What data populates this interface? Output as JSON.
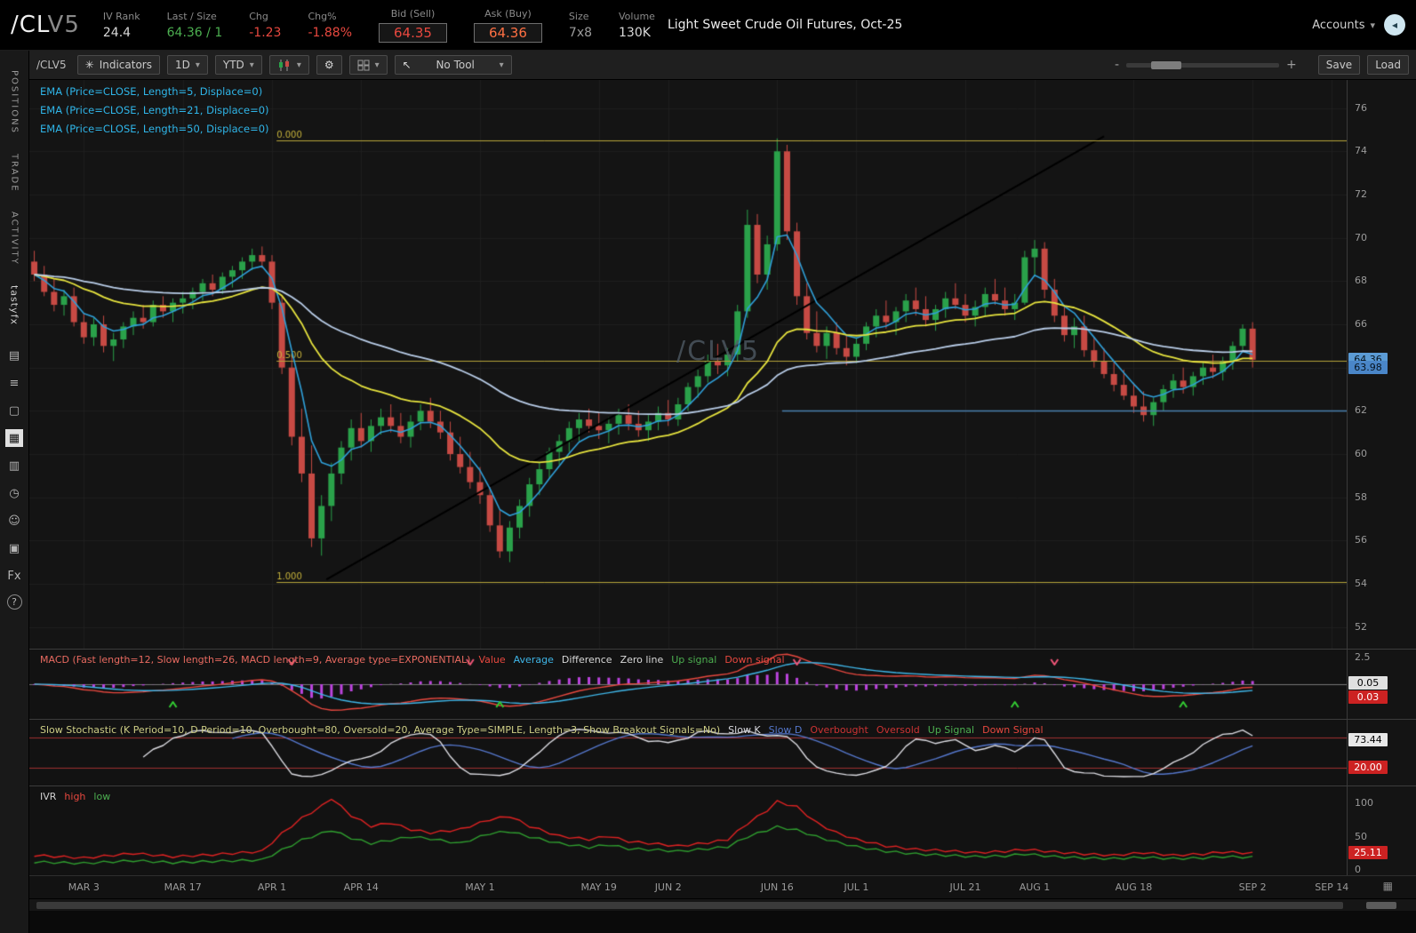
{
  "header": {
    "symbol_main": "/CL",
    "symbol_suffix": "V5",
    "stats": [
      {
        "label": "IV Rank",
        "value": "24.4",
        "color": "#d8d8d8"
      },
      {
        "label": "Last / Size",
        "value": "64.36 / 1",
        "color": "#4caf50"
      },
      {
        "label": "Chg",
        "value": "-1.23",
        "color": "#e8483f"
      },
      {
        "label": "Chg%",
        "value": "-1.88%",
        "color": "#e8483f"
      },
      {
        "label": "Bid (Sell)",
        "value": "64.35",
        "color": "#e8483f",
        "boxed": true
      },
      {
        "label": "Ask (Buy)",
        "value": "64.36",
        "color": "#ff7043",
        "boxed": true
      },
      {
        "label": "Size",
        "value": "7x8",
        "color": "#9a9a9a"
      },
      {
        "label": "Volume",
        "value": "130K",
        "color": "#d8d8d8"
      }
    ],
    "contract_name": "Light Sweet Crude Oil Futures, Oct-25",
    "accounts_label": "Accounts"
  },
  "sidebar": {
    "tabs": [
      {
        "name": "positions",
        "label": "POSITIONS"
      },
      {
        "name": "trade",
        "label": "TRADE"
      },
      {
        "name": "activity",
        "label": "ACTIVITY"
      },
      {
        "name": "tastyfx",
        "label": "tastyfx",
        "brand": true
      }
    ],
    "icons": [
      {
        "name": "news-icon",
        "glyph": "▤"
      },
      {
        "name": "watchlist-icon",
        "glyph": "≡"
      },
      {
        "name": "trade-page-icon",
        "glyph": "▢"
      },
      {
        "name": "charts-icon",
        "glyph": "▦",
        "active": true
      },
      {
        "name": "dashboard-grid-icon",
        "glyph": "▥"
      },
      {
        "name": "history-clock-icon",
        "glyph": "◷"
      },
      {
        "name": "community-icon",
        "glyph": "☺"
      },
      {
        "name": "calendar-icon",
        "glyph": "▣"
      },
      {
        "name": "forex-icon",
        "glyph": "Fx"
      },
      {
        "name": "help-icon",
        "glyph": "?",
        "circled": true
      }
    ]
  },
  "toolbar": {
    "symbol_label": "/CLV5",
    "indicators_label": "Indicators",
    "timeframe_value": "1D",
    "range_value": "YTD",
    "tool_value": "No Tool",
    "zoom_minus": "-",
    "zoom_plus": "+",
    "save_label": "Save",
    "load_label": "Load"
  },
  "chart_data": {
    "type": "candlestick",
    "symbol": "/CLV5",
    "watermark": "/CLV5",
    "price_axis": [
      76,
      74,
      72,
      70,
      68,
      66,
      64,
      62,
      60,
      58,
      56,
      54,
      52
    ],
    "price_range": {
      "max": 77.3,
      "min": 51.0
    },
    "total_slots": 133,
    "time_axis": [
      {
        "label": "MAR 3",
        "index": 5
      },
      {
        "label": "MAR 17",
        "index": 15
      },
      {
        "label": "APR 1",
        "index": 24
      },
      {
        "label": "APR 14",
        "index": 33
      },
      {
        "label": "MAY 1",
        "index": 45
      },
      {
        "label": "MAY 19",
        "index": 57
      },
      {
        "label": "JUN 2",
        "index": 64
      },
      {
        "label": "JUN 16",
        "index": 75
      },
      {
        "label": "JUL 1",
        "index": 83
      },
      {
        "label": "JUL 21",
        "index": 94
      },
      {
        "label": "AUG 1",
        "index": 101
      },
      {
        "label": "AUG 18",
        "index": 111
      },
      {
        "label": "SEP 2",
        "index": 123
      },
      {
        "label": "SEP 14",
        "index": 131
      }
    ],
    "ema_legend": [
      "EMA (Price=CLOSE, Length=5, Displace=0)",
      "EMA (Price=CLOSE, Length=21, Displace=0)",
      "EMA (Price=CLOSE, Length=50, Displace=0)"
    ],
    "ema_settings": [
      {
        "length": 5,
        "color": "#2f9fd8"
      },
      {
        "length": 21,
        "color": "#e6e33e"
      },
      {
        "length": 50,
        "color": "#b9cde8"
      }
    ],
    "fib_levels": [
      {
        "label": "0.000",
        "price": 74.5
      },
      {
        "label": "0.500",
        "price": 64.3
      },
      {
        "label": "1.000",
        "price": 54.1
      }
    ],
    "fib_label_index": 25,
    "fib_color": "#b7a43a",
    "support_line": {
      "price": 62.0,
      "start_index": 75.5,
      "color": "#4a7fae"
    },
    "trendline": {
      "start_index": 29.5,
      "start_price": 54.2,
      "end_index": 108,
      "end_price": 74.7,
      "color": "#000000"
    },
    "price_bubbles": [
      {
        "value": "64.36",
        "price": 64.36,
        "bg": "#5b9bd5",
        "fg": "#06121c"
      },
      {
        "value": "63.98",
        "price": 63.98,
        "bg": "#4a86c8",
        "fg": "#06121c"
      }
    ],
    "candle_up_color": "#2aa14a",
    "candle_down_color": "#c74a44",
    "grid_color": "#1e1e1e",
    "bg_color": "#141414",
    "candles": [
      [
        68.9,
        69.4,
        68.0,
        68.3
      ],
      [
        68.3,
        68.7,
        67.3,
        67.5
      ],
      [
        67.5,
        68.1,
        66.6,
        66.9
      ],
      [
        66.9,
        67.6,
        66.4,
        67.3
      ],
      [
        67.3,
        67.7,
        65.9,
        66.1
      ],
      [
        66.1,
        66.5,
        65.1,
        65.4
      ],
      [
        65.4,
        66.3,
        65.0,
        66.0
      ],
      [
        66.0,
        66.4,
        64.7,
        65.0
      ],
      [
        65.0,
        65.6,
        64.3,
        65.3
      ],
      [
        65.3,
        66.1,
        64.9,
        65.9
      ],
      [
        65.9,
        66.6,
        65.5,
        66.3
      ],
      [
        66.3,
        66.9,
        65.8,
        66.1
      ],
      [
        66.1,
        67.1,
        65.9,
        66.9
      ],
      [
        66.9,
        67.3,
        66.3,
        66.6
      ],
      [
        66.6,
        67.2,
        66.1,
        67.0
      ],
      [
        67.0,
        67.5,
        66.5,
        67.2
      ],
      [
        67.2,
        67.7,
        66.7,
        67.5
      ],
      [
        67.5,
        68.1,
        67.1,
        67.9
      ],
      [
        67.9,
        68.3,
        67.3,
        67.6
      ],
      [
        67.6,
        68.4,
        67.4,
        68.2
      ],
      [
        68.2,
        68.7,
        67.7,
        68.5
      ],
      [
        68.5,
        69.1,
        68.1,
        68.9
      ],
      [
        68.9,
        69.5,
        68.5,
        69.2
      ],
      [
        69.2,
        69.6,
        68.6,
        68.9
      ],
      [
        68.9,
        69.2,
        66.7,
        67.0
      ],
      [
        67.0,
        67.3,
        63.7,
        64.0
      ],
      [
        64.0,
        64.6,
        60.4,
        60.8
      ],
      [
        60.8,
        62.1,
        58.7,
        59.1
      ],
      [
        59.1,
        60.4,
        55.7,
        56.1
      ],
      [
        56.1,
        58.1,
        55.3,
        57.6
      ],
      [
        57.6,
        59.6,
        56.9,
        59.1
      ],
      [
        59.1,
        60.6,
        58.6,
        60.3
      ],
      [
        60.3,
        61.6,
        59.7,
        61.2
      ],
      [
        61.2,
        61.9,
        60.3,
        60.6
      ],
      [
        60.6,
        61.6,
        60.1,
        61.3
      ],
      [
        61.3,
        62.1,
        60.9,
        61.7
      ],
      [
        61.7,
        62.3,
        61.0,
        61.3
      ],
      [
        61.3,
        61.9,
        60.5,
        60.8
      ],
      [
        60.8,
        61.8,
        60.3,
        61.5
      ],
      [
        61.5,
        62.3,
        61.1,
        62.0
      ],
      [
        62.0,
        62.6,
        61.2,
        61.5
      ],
      [
        61.5,
        62.0,
        60.7,
        61.0
      ],
      [
        61.0,
        61.5,
        59.7,
        60.0
      ],
      [
        60.0,
        60.8,
        59.1,
        59.4
      ],
      [
        59.4,
        60.1,
        58.4,
        58.7
      ],
      [
        58.7,
        59.4,
        57.7,
        58.1
      ],
      [
        58.1,
        58.5,
        56.4,
        56.7
      ],
      [
        56.7,
        57.4,
        55.2,
        55.5
      ],
      [
        55.5,
        56.9,
        55.0,
        56.6
      ],
      [
        56.6,
        57.9,
        56.1,
        57.6
      ],
      [
        57.6,
        58.9,
        57.1,
        58.6
      ],
      [
        58.6,
        59.6,
        58.1,
        59.3
      ],
      [
        59.3,
        60.3,
        58.9,
        60.1
      ],
      [
        60.1,
        60.9,
        59.5,
        60.6
      ],
      [
        60.6,
        61.5,
        60.1,
        61.2
      ],
      [
        61.2,
        61.9,
        60.6,
        61.6
      ],
      [
        61.6,
        62.1,
        61.0,
        61.3
      ],
      [
        61.3,
        61.9,
        60.7,
        61.1
      ],
      [
        61.1,
        61.7,
        60.5,
        61.4
      ],
      [
        61.4,
        62.1,
        60.9,
        61.8
      ],
      [
        61.8,
        62.3,
        61.1,
        61.4
      ],
      [
        61.4,
        62.0,
        60.8,
        61.1
      ],
      [
        61.1,
        61.8,
        60.6,
        61.5
      ],
      [
        61.5,
        62.2,
        61.1,
        61.9
      ],
      [
        61.9,
        62.5,
        61.3,
        61.6
      ],
      [
        61.6,
        62.6,
        61.3,
        62.3
      ],
      [
        62.3,
        63.3,
        62.0,
        63.1
      ],
      [
        63.1,
        63.9,
        62.6,
        63.6
      ],
      [
        63.6,
        64.6,
        63.3,
        64.3
      ],
      [
        64.3,
        65.1,
        63.7,
        64.1
      ],
      [
        64.1,
        64.9,
        63.6,
        64.6
      ],
      [
        64.6,
        66.9,
        64.3,
        66.6
      ],
      [
        66.6,
        71.3,
        66.3,
        70.6
      ],
      [
        70.6,
        71.1,
        67.9,
        68.3
      ],
      [
        68.3,
        70.1,
        67.6,
        69.7
      ],
      [
        69.7,
        74.6,
        69.4,
        74.0
      ],
      [
        74.0,
        74.3,
        69.9,
        70.3
      ],
      [
        70.3,
        70.7,
        66.9,
        67.3
      ],
      [
        67.3,
        67.9,
        65.3,
        65.6
      ],
      [
        65.6,
        66.6,
        64.7,
        65.0
      ],
      [
        65.0,
        65.9,
        64.4,
        65.6
      ],
      [
        65.6,
        66.1,
        64.6,
        64.9
      ],
      [
        64.9,
        65.5,
        64.1,
        64.5
      ],
      [
        64.5,
        65.4,
        64.2,
        65.1
      ],
      [
        65.1,
        66.1,
        64.8,
        65.9
      ],
      [
        65.9,
        66.7,
        65.4,
        66.4
      ],
      [
        66.4,
        67.1,
        65.8,
        66.1
      ],
      [
        66.1,
        66.8,
        65.5,
        66.6
      ],
      [
        66.6,
        67.4,
        66.1,
        67.1
      ],
      [
        67.1,
        67.7,
        66.4,
        66.7
      ],
      [
        66.7,
        67.3,
        65.9,
        66.2
      ],
      [
        66.2,
        66.9,
        65.7,
        66.7
      ],
      [
        66.7,
        67.5,
        66.3,
        67.2
      ],
      [
        67.2,
        67.9,
        66.7,
        66.9
      ],
      [
        66.9,
        67.4,
        66.1,
        66.4
      ],
      [
        66.4,
        67.1,
        65.9,
        66.8
      ],
      [
        66.8,
        67.7,
        66.4,
        67.4
      ],
      [
        67.4,
        68.1,
        66.9,
        67.1
      ],
      [
        67.1,
        67.7,
        66.4,
        66.7
      ],
      [
        66.7,
        67.4,
        66.2,
        67.0
      ],
      [
        67.0,
        69.4,
        66.9,
        69.1
      ],
      [
        69.1,
        69.9,
        68.2,
        69.5
      ],
      [
        69.5,
        69.8,
        67.2,
        67.6
      ],
      [
        67.6,
        68.1,
        66.1,
        66.4
      ],
      [
        66.4,
        66.9,
        65.2,
        65.5
      ],
      [
        65.5,
        66.3,
        64.9,
        65.9
      ],
      [
        65.9,
        66.4,
        64.5,
        64.8
      ],
      [
        64.8,
        65.4,
        64.0,
        64.3
      ],
      [
        64.3,
        64.9,
        63.5,
        63.7
      ],
      [
        63.7,
        64.3,
        62.9,
        63.2
      ],
      [
        63.2,
        63.9,
        62.5,
        62.7
      ],
      [
        62.7,
        63.3,
        61.9,
        62.2
      ],
      [
        62.2,
        62.9,
        61.5,
        61.8
      ],
      [
        61.8,
        62.6,
        61.3,
        62.4
      ],
      [
        62.4,
        63.2,
        62.0,
        63.0
      ],
      [
        63.0,
        63.7,
        62.6,
        63.4
      ],
      [
        63.4,
        64.0,
        62.8,
        63.1
      ],
      [
        63.1,
        63.8,
        62.7,
        63.6
      ],
      [
        63.6,
        64.3,
        63.2,
        64.0
      ],
      [
        64.0,
        64.6,
        63.5,
        63.8
      ],
      [
        63.8,
        64.5,
        63.4,
        64.3
      ],
      [
        64.3,
        65.2,
        63.9,
        65.0
      ],
      [
        65.0,
        66.0,
        64.7,
        65.8
      ],
      [
        65.8,
        66.1,
        64.0,
        64.36
      ]
    ],
    "macd": {
      "legend": [
        {
          "text": "MACD (Fast length=12, Slow length=26, MACD length=9, Average type=EXPONENTIAL)",
          "color": "#e86a60"
        },
        {
          "text": "Value",
          "color": "#e8483f"
        },
        {
          "text": "Average",
          "color": "#3fb6e8"
        },
        {
          "text": "Difference",
          "color": "#d8d8d8"
        },
        {
          "text": "Zero line",
          "color": "#d8d8d8"
        },
        {
          "text": "Up signal",
          "color": "#4caf50"
        },
        {
          "text": "Down signal",
          "color": "#e8483f"
        }
      ],
      "axis_top": "2.5",
      "value_bubble": {
        "value": "0.05",
        "bg": "#e0e0e0",
        "fg": "#000000"
      },
      "low_bubble": {
        "value": "0.03",
        "bg": "#cc2222",
        "fg": "#ffffff"
      },
      "hist_color": "#bb44dd",
      "value_color": "#e8483f",
      "avg_color": "#3fb6e8",
      "zero_color": "#777777",
      "up_color": "#33cc33",
      "down_color": "#ee5577",
      "up_signals": [
        14,
        47,
        99,
        116
      ],
      "down_signals": [
        26,
        44,
        77,
        103
      ],
      "params": {
        "fast": 12,
        "slow": 26,
        "signal": 9
      }
    },
    "stochastic": {
      "legend": [
        {
          "text": "Slow Stochastic (K Period=10, D Period=10, Overbought=80, Oversold=20, Average Type=SIMPLE, Length=3, Show Breakout Signals=No)",
          "color": "#cdcd85"
        },
        {
          "text": "Slow K",
          "color": "#d8d8de"
        },
        {
          "text": "Slow D",
          "color": "#5577cc"
        },
        {
          "text": "Overbought",
          "color": "#cc3333"
        },
        {
          "text": "Oversold",
          "color": "#cc3333"
        },
        {
          "text": "Up Signal",
          "color": "#4caf50"
        },
        {
          "text": "Down Signal",
          "color": "#e8483f"
        }
      ],
      "k_color": "#dcdce2",
      "d_color": "#5577cc",
      "band_color": "#a03030",
      "overbought": 80,
      "oversold": 20,
      "k_bubble": {
        "value": "73.44",
        "bg": "#e8e8e8",
        "fg": "#000000"
      },
      "os_bubble": {
        "value": "20.00",
        "bg": "#cc2222",
        "fg": "#ffffff"
      },
      "params": {
        "k_period": 10,
        "d_period": 10,
        "length": 3
      }
    },
    "ivr": {
      "legend": [
        {
          "text": "IVR",
          "color": "#d0d0d0"
        },
        {
          "text": "high",
          "color": "#e8483f"
        },
        {
          "text": "low",
          "color": "#4caf50"
        }
      ],
      "axis": [
        100,
        50,
        0
      ],
      "high_color": "#dd2222",
      "low_color": "#2f9e2f",
      "value_bubble": {
        "value": "25.11",
        "bg": "#cc2222",
        "fg": "#ffffff"
      },
      "points": [
        [
          0,
          22,
          12
        ],
        [
          5,
          18,
          10
        ],
        [
          10,
          25,
          14
        ],
        [
          14,
          20,
          11
        ],
        [
          18,
          23,
          13
        ],
        [
          23,
          28,
          15
        ],
        [
          25,
          55,
          30
        ],
        [
          27,
          78,
          45
        ],
        [
          29,
          96,
          55
        ],
        [
          30,
          108,
          60
        ],
        [
          32,
          82,
          48
        ],
        [
          34,
          66,
          40
        ],
        [
          36,
          71,
          45
        ],
        [
          38,
          61,
          50
        ],
        [
          40,
          56,
          47
        ],
        [
          43,
          61,
          40
        ],
        [
          46,
          76,
          55
        ],
        [
          48,
          81,
          58
        ],
        [
          50,
          66,
          50
        ],
        [
          53,
          51,
          40
        ],
        [
          56,
          46,
          34
        ],
        [
          58,
          51,
          38
        ],
        [
          60,
          43,
          32
        ],
        [
          63,
          39,
          30
        ],
        [
          65,
          36,
          28
        ],
        [
          68,
          41,
          32
        ],
        [
          70,
          46,
          35
        ],
        [
          72,
          70,
          50
        ],
        [
          74,
          90,
          60
        ],
        [
          75,
          103,
          65
        ],
        [
          77,
          95,
          60
        ],
        [
          79,
          71,
          50
        ],
        [
          81,
          56,
          42
        ],
        [
          83,
          46,
          35
        ],
        [
          86,
          36,
          28
        ],
        [
          89,
          31,
          24
        ],
        [
          92,
          29,
          22
        ],
        [
          95,
          26,
          20
        ],
        [
          98,
          28,
          21
        ],
        [
          100,
          31,
          24
        ],
        [
          103,
          27,
          20
        ],
        [
          106,
          24,
          18
        ],
        [
          109,
          22,
          17
        ],
        [
          112,
          26,
          19
        ],
        [
          115,
          22,
          17
        ],
        [
          118,
          24,
          18
        ],
        [
          120,
          27,
          20
        ],
        [
          123,
          25.11,
          19
        ]
      ]
    }
  }
}
